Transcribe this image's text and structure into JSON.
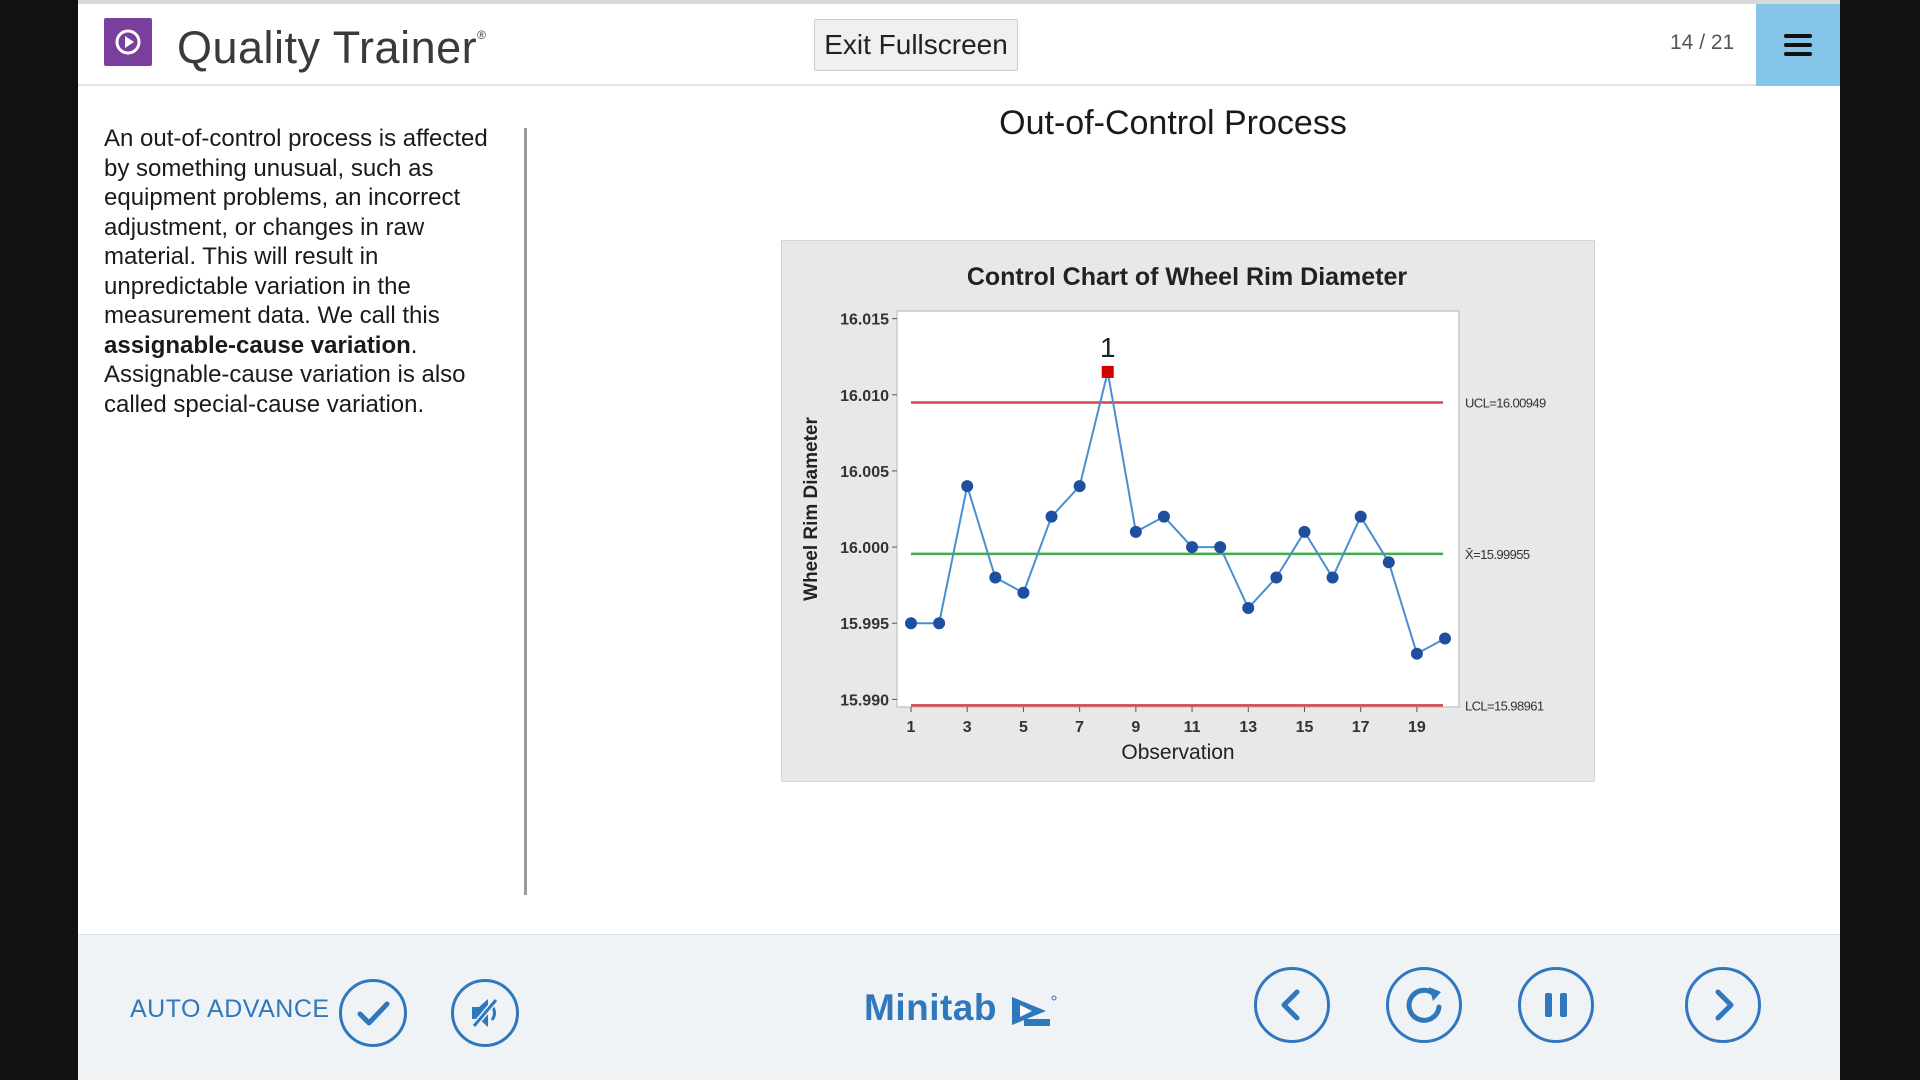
{
  "header": {
    "app_name": "Quality Trainer",
    "trademark": "®",
    "exit_button": "Exit Fullscreen",
    "page_indicator": "14 / 21"
  },
  "content": {
    "title": "Out-of-Control Process",
    "paragraph": {
      "before": "An out-of-control process is affected by something unusual, such as equipment problems, an incorrect adjustment, or changes in raw material. This will result in unpredictable variation in the measurement data. We call this ",
      "bold": "assignable-cause variation",
      "after": ". Assignable-cause variation is also called special-cause variation."
    }
  },
  "chart_data": {
    "type": "line",
    "title": "Control Chart of Wheel Rim Diameter",
    "xlabel": "Observation",
    "ylabel": "Wheel Rim Diameter",
    "x": [
      1,
      2,
      3,
      4,
      5,
      6,
      7,
      8,
      9,
      10,
      11,
      12,
      13,
      14,
      15,
      16,
      17,
      18,
      19,
      20
    ],
    "values": [
      15.995,
      15.995,
      16.004,
      15.998,
      15.997,
      16.002,
      16.004,
      16.0115,
      16.001,
      16.002,
      16.0,
      16.0,
      15.996,
      15.998,
      16.001,
      15.998,
      16.002,
      15.999,
      15.993,
      15.994
    ],
    "ylim": [
      15.9895,
      16.0155
    ],
    "xlim": [
      1,
      20
    ],
    "yticks": [
      15.99,
      15.995,
      16.0,
      16.005,
      16.01,
      16.015
    ],
    "ytick_labels": [
      "15.990",
      "15.995",
      "16.000",
      "16.005",
      "16.010",
      "16.015"
    ],
    "xticks": [
      1,
      3,
      5,
      7,
      9,
      11,
      13,
      15,
      17,
      19
    ],
    "xtick_labels": [
      "1",
      "3",
      "5",
      "7",
      "9",
      "11",
      "13",
      "15",
      "17",
      "19"
    ],
    "control_limits": {
      "ucl": 16.00949,
      "ucl_label": "UCL=16.00949",
      "mean": 15.99955,
      "mean_label": "X̄=15.99955",
      "lcl": 15.98961,
      "lcl_label": "LCL=15.98961"
    },
    "out_of_control": [
      {
        "x": 8,
        "label": "1"
      }
    ],
    "colors": {
      "line": "#4a8fd0",
      "point": "#1f4f9e",
      "limit": "#d64545",
      "center": "#3fae49",
      "flag": "#d40000"
    },
    "grid": false
  },
  "footer": {
    "auto_advance": "AUTO ADVANCE",
    "brand": "Minitab",
    "icons": [
      "check-circle-icon",
      "mute-icon",
      "prev-icon",
      "replay-icon",
      "pause-icon",
      "next-icon"
    ],
    "accent": "#2f78bd"
  }
}
